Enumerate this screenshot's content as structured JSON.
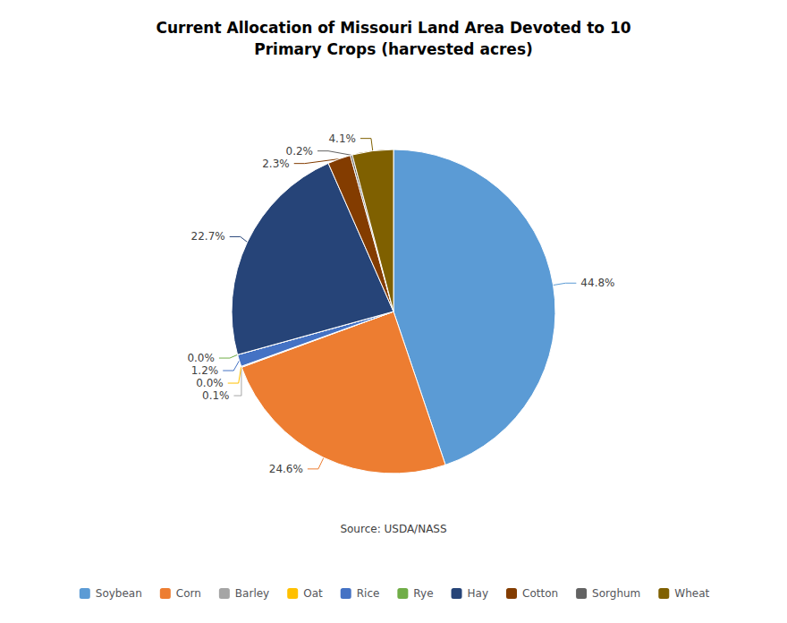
{
  "chart_data": {
    "type": "pie",
    "title": "Current Allocation of Missouri Land Area Devoted to 10\nPrimary Crops (harvested acres)",
    "categories": [
      "Soybean",
      "Corn",
      "Barley",
      "Oat",
      "Rice",
      "Rye",
      "Hay",
      "Cotton",
      "Sorghum",
      "Wheat"
    ],
    "values": [
      44.8,
      24.6,
      0.1,
      0.0,
      1.2,
      0.0,
      22.7,
      2.3,
      0.2,
      4.1
    ],
    "value_labels": [
      "44.8%",
      "24.6%",
      "0.1%",
      "0.0%",
      "1.2%",
      "0.0%",
      "22.7%",
      "2.3%",
      "0.2%",
      "4.1%"
    ],
    "colors": [
      "#5b9bd5",
      "#ed7d31",
      "#a5a5a5",
      "#ffc000",
      "#4472c4",
      "#70ad47",
      "#264478",
      "#833c00",
      "#636363",
      "#7f6000"
    ],
    "annotations": [
      "Source: USDA/NASS"
    ],
    "data_labels": true,
    "legend": "bottom"
  }
}
